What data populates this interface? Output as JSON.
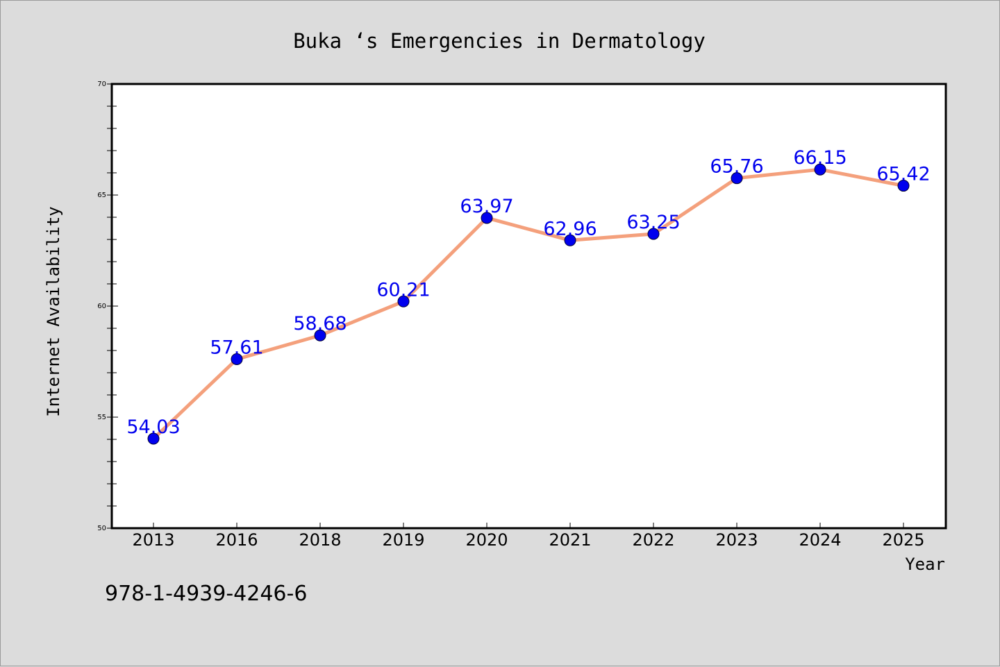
{
  "chart_data": {
    "type": "line",
    "title": "Buka ‘s Emergencies in Dermatology",
    "xlabel": "Year",
    "ylabel": "Internet Availability",
    "categories": [
      "2013",
      "2016",
      "2018",
      "2019",
      "2020",
      "2021",
      "2022",
      "2023",
      "2024",
      "2025"
    ],
    "series": [
      {
        "values": [
          54.03,
          57.61,
          58.68,
          60.21,
          63.97,
          62.96,
          63.25,
          65.76,
          66.15,
          65.42
        ],
        "data_labels": [
          "54.03",
          "57.61",
          "58.68",
          "60.21",
          "63.97",
          "62.96",
          "63.25",
          "65.76",
          "66.15",
          "65.42"
        ],
        "line_color": "#f4a07c",
        "marker_color": "#0000ee",
        "label_color": "#0000ee"
      }
    ],
    "ylim": [
      50,
      70
    ],
    "yticks": [
      "50",
      "55",
      "60",
      "65",
      "70"
    ],
    "grid": false,
    "legend": "none"
  },
  "footer": {
    "isbn": "978-1-4939-4246-6"
  },
  "colors": {
    "background": "#dcdcdc",
    "plot_area": "#ffffff",
    "axis": "#000000"
  }
}
